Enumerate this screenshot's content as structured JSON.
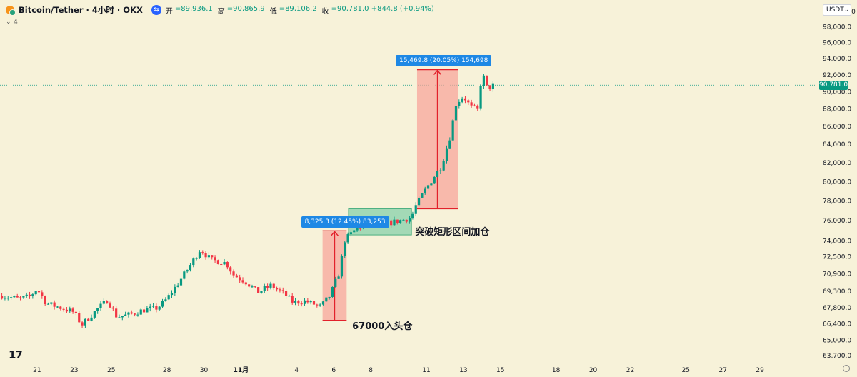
{
  "header": {
    "title": "Bitcoin/Tether · 4小时 · OKX",
    "ohlc": [
      {
        "label": "开",
        "value": "=89,936.1"
      },
      {
        "label": "高",
        "value": "=90,865.9"
      },
      {
        "label": "低",
        "value": "=89,106.2"
      },
      {
        "label": "收",
        "value": "=90,781.0 +844.8 (+0.94%)"
      }
    ],
    "indicator_count": "4",
    "currency": "USDT"
  },
  "colors": {
    "background": "#f7f2d9",
    "up": "#089981",
    "down": "#f23645",
    "measure_red": "#f8a59b",
    "measure_green": "#7fcfa6",
    "label_blue": "#1e88e5"
  },
  "chart_data": {
    "type": "candlestick",
    "y_axis": {
      "ticks": [
        "100,000.0",
        "98,000.0",
        "96,000.0",
        "94,000.0",
        "92,000.0",
        "90,000.0",
        "88,000.0",
        "86,000.0",
        "84,000.0",
        "82,000.0",
        "80,000.0",
        "78,000.0",
        "76,000.0",
        "74,000.0",
        "72,500.0",
        "70,900.0",
        "69,300.0",
        "67,800.0",
        "66,400.0",
        "65,000.0",
        "63,700.0"
      ],
      "scale": "log",
      "range": [
        63100,
        101500
      ]
    },
    "x_axis": {
      "ticks": [
        "21",
        "23",
        "25",
        "28",
        "30",
        "11月",
        "4",
        "6",
        "8",
        "11",
        "13",
        "15",
        "18",
        "20",
        "22",
        "25",
        "27",
        "29"
      ],
      "tick_days": [
        -10,
        -8,
        -6,
        -3,
        -1,
        1,
        4,
        6,
        8,
        11,
        13,
        15,
        18,
        20,
        22,
        25,
        27,
        29
      ],
      "range_days": [
        -12,
        32
      ]
    },
    "current_price": "90,781.0",
    "current_value": 90781,
    "candle_path": [
      [
        -11.9,
        68900
      ],
      [
        -11.0,
        68600
      ],
      [
        -10.4,
        68800
      ],
      [
        -10.0,
        69500
      ],
      [
        -9.5,
        68200
      ],
      [
        -8.7,
        67800
      ],
      [
        -8.0,
        67400
      ],
      [
        -7.6,
        66300
      ],
      [
        -6.8,
        67600
      ],
      [
        -6.2,
        68500
      ],
      [
        -5.7,
        67000
      ],
      [
        -5.0,
        67200
      ],
      [
        -4.3,
        67600
      ],
      [
        -3.5,
        67800
      ],
      [
        -3.0,
        68600
      ],
      [
        -2.4,
        70000
      ],
      [
        -1.7,
        71800
      ],
      [
        -1.2,
        73200
      ],
      [
        -0.6,
        72200
      ],
      [
        0.2,
        71900
      ],
      [
        0.6,
        70800
      ],
      [
        1.3,
        70100
      ],
      [
        1.9,
        69200
      ],
      [
        2.6,
        69800
      ],
      [
        3.3,
        69100
      ],
      [
        3.8,
        68300
      ],
      [
        4.5,
        68400
      ],
      [
        5.3,
        67900
      ],
      [
        5.8,
        68900
      ],
      [
        6.3,
        71000
      ],
      [
        6.6,
        74100
      ],
      [
        7.1,
        75000
      ],
      [
        7.8,
        75800
      ],
      [
        8.5,
        75600
      ],
      [
        9.3,
        75900
      ],
      [
        10.2,
        76300
      ],
      [
        10.4,
        77400
      ],
      [
        10.9,
        79000
      ],
      [
        11.3,
        80200
      ],
      [
        11.8,
        81600
      ],
      [
        12.3,
        85000
      ],
      [
        12.6,
        88600
      ],
      [
        13.0,
        89500
      ],
      [
        13.4,
        88200
      ],
      [
        13.8,
        87900
      ],
      [
        14.0,
        92400
      ],
      [
        14.3,
        90300
      ],
      [
        14.6,
        90781
      ]
    ],
    "measures": [
      {
        "label": "8,325.3 (12.45%) 83,253",
        "x": [
          5.4,
          6.7
        ],
        "y": [
          66700,
          75000
        ],
        "fill": "red"
      },
      {
        "label": "15,469.8 (20.05%) 154,698",
        "x": [
          10.5,
          12.7
        ],
        "y": [
          77200,
          92650
        ],
        "fill": "red"
      }
    ],
    "ranges": [
      {
        "x": [
          6.8,
          10.2
        ],
        "y": [
          74600,
          77200
        ],
        "fill": "green"
      }
    ],
    "annotations": [
      {
        "text": "67000入头仓",
        "x": 7.0,
        "y": 67000
      },
      {
        "text": "突破矩形区间加仓",
        "x": 10.4,
        "y": 75800
      }
    ]
  }
}
